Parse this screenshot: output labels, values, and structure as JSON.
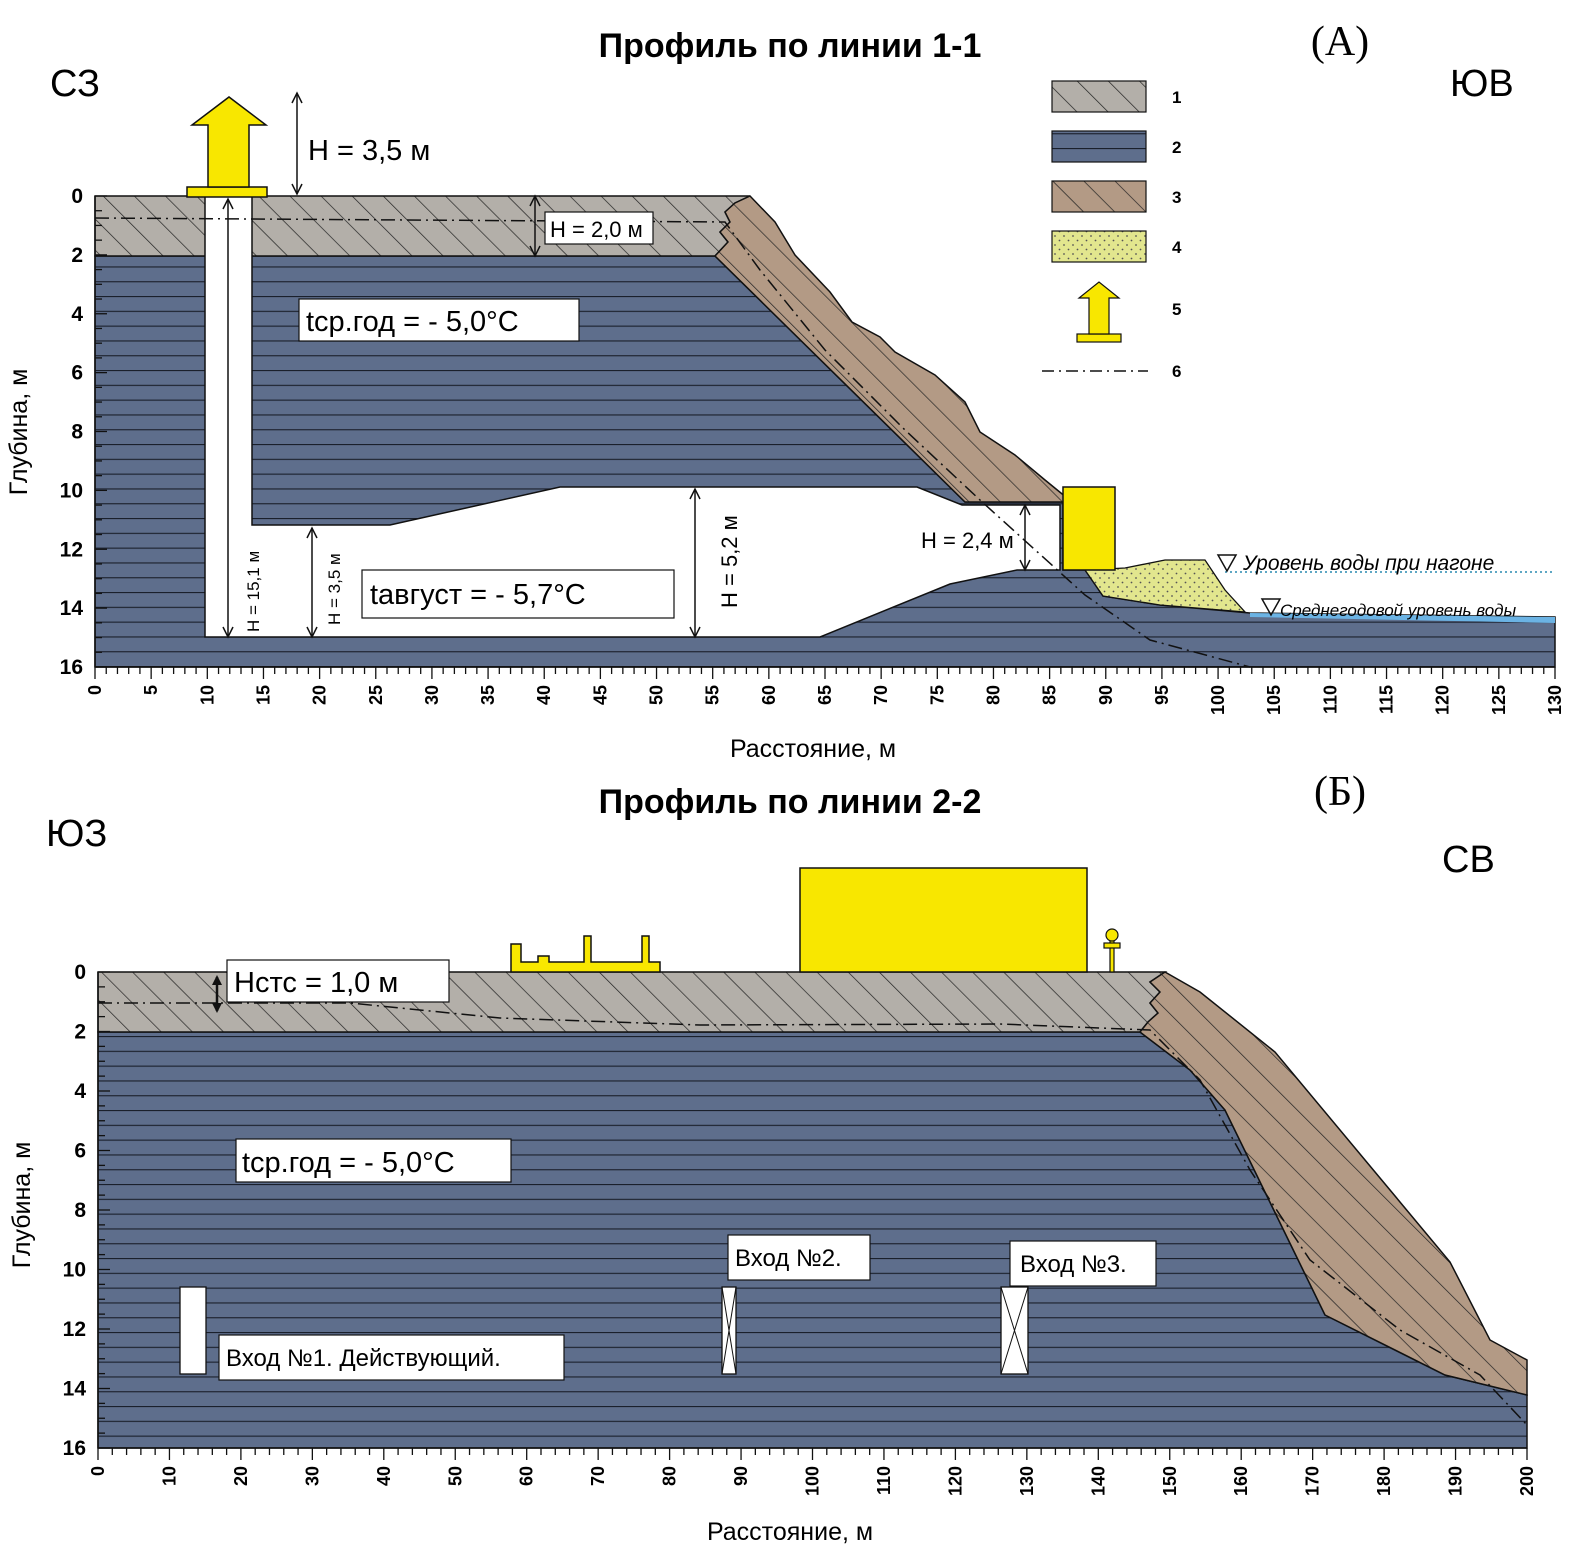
{
  "profile_a": {
    "title": "Профиль по линии 1-1",
    "panel_label": "(А)",
    "dir_left": "СЗ",
    "dir_right": "ЮВ",
    "y_axis_label": "Глубина, м",
    "x_axis_label": "Расстояние, м",
    "y_ticks": [
      "0",
      "2",
      "4",
      "6",
      "8",
      "10",
      "12",
      "14",
      "16"
    ],
    "x_ticks": [
      "0",
      "5",
      "10",
      "15",
      "20",
      "25",
      "30",
      "35",
      "40",
      "45",
      "50",
      "55",
      "60",
      "65",
      "70",
      "75",
      "80",
      "85",
      "90",
      "95",
      "100",
      "105",
      "110",
      "115",
      "120",
      "125",
      "130"
    ],
    "h_top": "H = 3,5 м",
    "h_active": "H = 2,0 м",
    "h_15": "H = 15,1 м",
    "h_35": "H = 3,5 м",
    "h_52": "H = 5,2 м",
    "h_24": "H = 2,4 м",
    "t_year": "tср.год = - 5,0°С",
    "t_aug": "tавгуст = - 5,7°С",
    "water_surge": "Уровень воды при нагоне",
    "water_mean": "Среднегодовой уровень воды",
    "legend": [
      "1",
      "2",
      "3",
      "4",
      "5",
      "6"
    ]
  },
  "profile_b": {
    "title": "Профиль по линии 2-2",
    "panel_label": "(Б)",
    "dir_left": "ЮЗ",
    "dir_right": "СВ",
    "y_axis_label": "Глубина, м",
    "x_axis_label": "Расстояние, м",
    "y_ticks": [
      "0",
      "2",
      "4",
      "6",
      "8",
      "10",
      "12",
      "14",
      "16"
    ],
    "x_ticks": [
      "0",
      "10",
      "20",
      "30",
      "40",
      "50",
      "60",
      "70",
      "80",
      "90",
      "100",
      "110",
      "120",
      "130",
      "140",
      "150",
      "160",
      "170",
      "180",
      "190",
      "200"
    ],
    "h_stc": "Hстс = 1,0 м",
    "t_year": "tср.год = - 5,0°С",
    "entrance_1": "Вход №1. Действующий.",
    "entrance_2": "Вход №2.",
    "entrance_3": "Вход №3."
  },
  "colors": {
    "permafrost": "#5e6e8c",
    "active_layer": "#b3afa9",
    "slope_deposit": "#b39a85",
    "sand": "#e2e68e",
    "structure": "#f8e700",
    "water": "#6bb3e4"
  }
}
